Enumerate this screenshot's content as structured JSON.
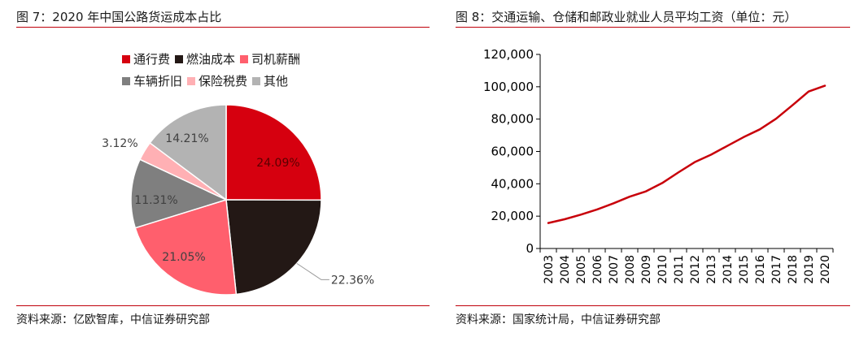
{
  "left": {
    "title": "图 7：2020 年中国公路货运成本占比",
    "source": "资料来源：亿欧智库，中信证券研究部"
  },
  "right": {
    "title": "图 8：交通运输、仓储和邮政业就业人员平均工资（单位：元）",
    "source": "资料来源：国家统计局，中信证券研究部"
  },
  "chart_data": [
    {
      "type": "pie",
      "labels": [
        "通行费",
        "燃油成本",
        "司机薪酬",
        "车辆折旧",
        "保险税费",
        "其他"
      ],
      "values": [
        24.09,
        22.36,
        21.05,
        11.31,
        3.12,
        14.21
      ],
      "value_labels": [
        "24.09%",
        "22.36%",
        "21.05%",
        "11.31%",
        "3.12%",
        "14.21%"
      ],
      "colors": [
        "#d6000f",
        "#231815",
        "#ff5f6d",
        "#7f7f7f",
        "#ffb0b4",
        "#b3b3b3"
      ],
      "legend_position": "top"
    },
    {
      "type": "line",
      "x": [
        "2003",
        "2004",
        "2005",
        "2006",
        "2007",
        "2008",
        "2009",
        "2010",
        "2011",
        "2012",
        "2013",
        "2014",
        "2015",
        "2016",
        "2017",
        "2018",
        "2019",
        "2020"
      ],
      "series": [
        {
          "values": [
            15753,
            18071,
            20911,
            24111,
            27903,
            32041,
            35315,
            40466,
            47078,
            53391,
            57993,
            63416,
            68822,
            73650,
            80225,
            88508,
            97050,
            100642
          ],
          "color": "#c8000a"
        }
      ],
      "ylim": [
        0,
        120000
      ],
      "yticks": [
        "0",
        "20,000",
        "40,000",
        "60,000",
        "80,000",
        "100,000",
        "120,000"
      ],
      "grid": false
    }
  ]
}
